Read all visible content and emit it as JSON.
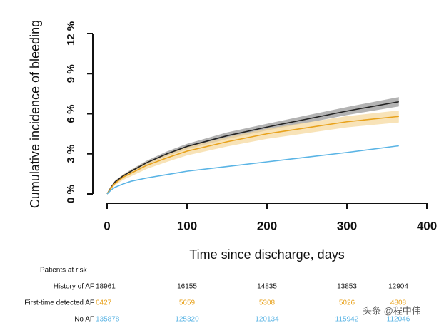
{
  "chart_data": {
    "type": "line",
    "x_label": "Time since discharge, days",
    "y_label": "Cumulative incidence of bleeding",
    "x": [
      0,
      5,
      10,
      20,
      30,
      50,
      75,
      100,
      150,
      200,
      250,
      300,
      365
    ],
    "xlim": [
      0,
      400
    ],
    "xticks": [
      0,
      100,
      200,
      300,
      400
    ],
    "ylim": [
      0,
      12
    ],
    "yticks": [
      {
        "value": 0,
        "label": "0 %"
      },
      {
        "value": 3,
        "label": "3 %"
      },
      {
        "value": 6,
        "label": "6 %"
      },
      {
        "value": 9,
        "label": "9 %"
      },
      {
        "value": 12,
        "label": "12 %"
      }
    ],
    "series": [
      {
        "color": "#222222",
        "band_color": "#9a9a9a",
        "values": [
          0,
          0.5,
          0.9,
          1.35,
          1.7,
          2.35,
          3.0,
          3.55,
          4.35,
          5.0,
          5.6,
          6.2,
          6.9
        ],
        "lower": [
          0,
          0.45,
          0.8,
          1.25,
          1.58,
          2.2,
          2.82,
          3.35,
          4.1,
          4.75,
          5.32,
          5.9,
          6.55
        ],
        "upper": [
          0,
          0.55,
          1.0,
          1.45,
          1.82,
          2.5,
          3.18,
          3.75,
          4.6,
          5.25,
          5.88,
          6.5,
          7.25
        ]
      },
      {
        "color": "#e8a21c",
        "band_color": "#f6d9a0",
        "values": [
          0,
          0.45,
          0.8,
          1.25,
          1.55,
          2.15,
          2.7,
          3.2,
          3.9,
          4.5,
          4.95,
          5.4,
          5.8
        ],
        "lower": [
          0,
          0.35,
          0.65,
          1.05,
          1.32,
          1.88,
          2.4,
          2.88,
          3.55,
          4.12,
          4.55,
          4.98,
          5.35
        ],
        "upper": [
          0,
          0.55,
          0.95,
          1.45,
          1.78,
          2.42,
          3.0,
          3.52,
          4.25,
          4.88,
          5.35,
          5.82,
          6.25
        ]
      },
      {
        "color": "#5ab4e5",
        "values": [
          0,
          0.3,
          0.5,
          0.75,
          0.95,
          1.2,
          1.45,
          1.7,
          2.05,
          2.4,
          2.75,
          3.1,
          3.6
        ]
      }
    ]
  },
  "risk_table": {
    "title": "Patients at risk",
    "rows": [
      {
        "label": "History of AF",
        "color": "#222222",
        "values": [
          18961,
          16155,
          14835,
          13853,
          12904
        ]
      },
      {
        "label": "First-time detected AF",
        "color": "#e8a21c",
        "values": [
          6427,
          5659,
          5308,
          5026,
          4808
        ]
      },
      {
        "label": "No AF",
        "color": "#5ab4e5",
        "values": [
          135878,
          125320,
          120134,
          115942,
          112046
        ]
      }
    ]
  },
  "watermark": "头条 @程中伟"
}
